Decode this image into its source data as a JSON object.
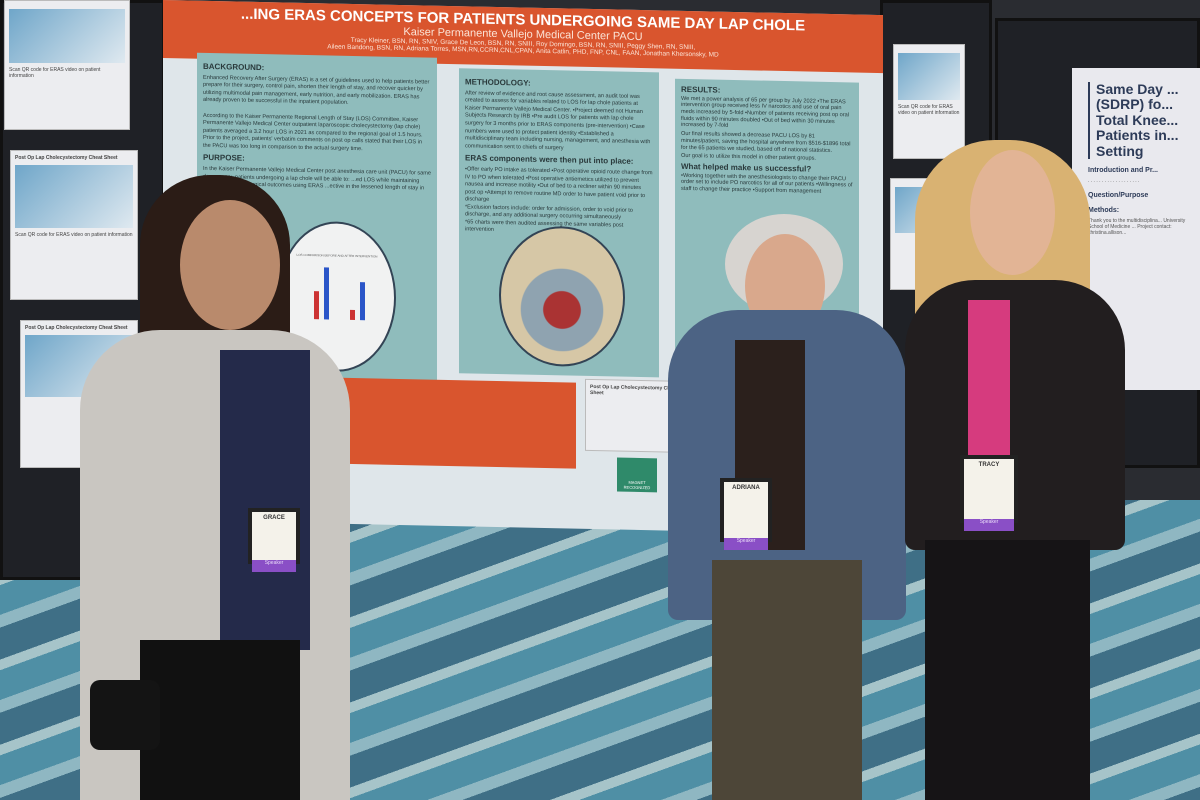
{
  "poster": {
    "title": "...ING ERAS CONCEPTS FOR PATIENTS UNDERGOING SAME DAY LAP CHOLE",
    "institution": "Kaiser Permanente Vallejo Medical Center PACU",
    "authors_line1": "Tracy Kleiner, BSN, RN, SNIV, Grace De Leon, BSN, RN, SNIII, Roy Domingo, BSN, RN, SNIII, Peggy Shen, RN, SNIII,",
    "authors_line2": "Aileen Bandong, BSN, RN, Adriana Torres, MSN,RN,CCRN,CNL,CPAN, Anita Catlin, PHD, FNP, CNL, FAAN, Jonathan Khersonsky, MD",
    "background_heading": "BACKGROUND:",
    "background_text": "Enhanced Recovery After Surgery (ERAS) is a set of guidelines used to help patients better prepare for their surgery, control pain, shorten their length of stay, and recover quicker by utilizing multimodal pain management, early nutrition, and early mobilization. ERAS has already proven to be successful in the inpatient population.",
    "background_text2": "According to the Kaiser Permanente Regional Length of Stay (LOS) Committee, Kaiser Permanente Vallejo Medical Center outpatient laparoscopic cholecystectomy (lap chole) patients averaged a 3.2 hour LOS in 2021 as compared to the regional goal of 1.5 hours. Prior to the project, patients' verbatim comments on post op calls stated that their LOS in the PACU was too long in comparison to the actual surgery time.",
    "purpose_heading": "PURPOSE:",
    "purpose_text": "In the Kaiser Permanente Vallejo Medical Center post anesthesia care unit (PACU) for same day surgery, patients undergoing a lap chole will be able to: ...ed LOS while maintaining safe and positive surgical outcomes using ERAS ...ective in the lessened length of stay in the PACU.",
    "methodology_heading": "METHODOLOGY:",
    "methodology_text": "After review of evidence and root cause assessment, an audit tool was created to assess for variables related to LOS for lap chole patients at Kaiser Permanente Vallejo Medical Center. •Project deemed not Human Subjects Research by IRB •Pre audit LOS for patients with lap chole surgery for 3 months prior to ERAS components (pre-intervention) •Case numbers were used to protect patient identity •Established a multidisciplinary team including nursing, management, and anesthesia with communication sent to chiefs of surgery",
    "eras_heading": "ERAS components were then put into place:",
    "eras_text": "•Offer early PO intake as tolerated •Post operative opioid route change from IV to PO when tolerated •Post operative antiemetics utilized to prevent nausea and increase motility •Out of bed to a recliner within 90 minutes post op •Attempt to remove routine MD order to have patient void prior to discharge",
    "exclusion_text": "*Exclusion factors include: order for admission, order to void prior to discharge, and any additional surgery occurring simultaneously",
    "charts_text": "*65 charts were then audited assessing the same variables post intervention",
    "results_heading": "RESULTS:",
    "results_text": "We met a power analysis of 65 per group by July 2022 •The ERAS intervention group received less IV narcotics and use of oral pain meds increased by 5-fold •Number of patients receiving post op oral fluids within 90 minutes doubled •Out of bed within 30 minutes increased by 7-fold",
    "results_text2": "Our final results showed a decrease PACU LOS by 81 minutes/patient, saving the hospital anywhere from $516-$1896 total for the 65 patients we studied, based off of national statistics.",
    "goal_text": "Our goal is to utilize this model in other patient groups.",
    "helped_heading": "What helped make us successful?",
    "helped_text": "•Working together with the anesthesiologists to change their PACU order set to include PO narcotics for all of our patients •Willingness of staff to change their practice •Support from management",
    "chart_caption": "LOS COMPARISON BEFORE AND AFTER INTERVENTION",
    "cheat_sheet": "Post Op Lap Cholecystectomy Cheat Sheet",
    "magnet": "MAGNET RECOGNIZED",
    "colors": {
      "header": "#d9552e",
      "panel": "#8fbcbc",
      "background": "#dfe6ea"
    }
  },
  "side_poster": {
    "title": "Same Day ... (SDRP) fo... Total Knee... Patients in... Setting",
    "intro_heading": "Introduction and Pr...",
    "question_heading": "Question/Purpose",
    "methods_heading": "Methods:",
    "thanks": "Thank you to the multidisciplina... University School of Medicine ... Project contact: christina.allison..."
  },
  "handouts": {
    "title": "Post Op Lap Cholecystectomy Cheat Sheet",
    "caption": "Scan QR code for ERAS video on patient information"
  },
  "badges": [
    {
      "name": "GRACE",
      "ribbon": "Speaker"
    },
    {
      "name": "ADRIANA",
      "ribbon": "Speaker"
    },
    {
      "name": "TRACY",
      "ribbon": "Speaker"
    }
  ]
}
